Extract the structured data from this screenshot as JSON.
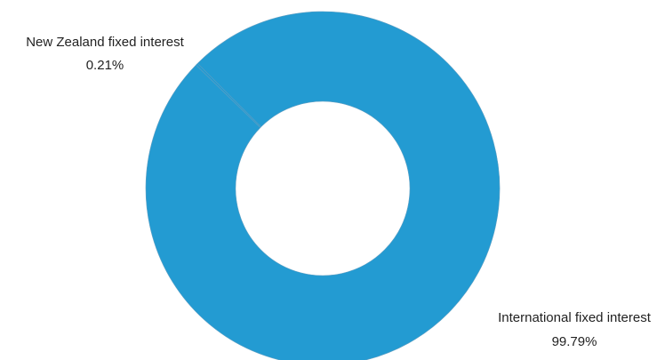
{
  "chart_data": {
    "type": "pie",
    "variant": "donut",
    "title": "",
    "slices": [
      {
        "label": "New Zealand  fixed interest",
        "value": 0.21,
        "value_label": "0.21%",
        "color": "#239bd2"
      },
      {
        "label": "International  fixed interest",
        "value": 99.79,
        "value_label": "99.79%",
        "color": "#239bd2"
      }
    ],
    "slice_border_color": "#5e9ec2",
    "legend": "none"
  }
}
